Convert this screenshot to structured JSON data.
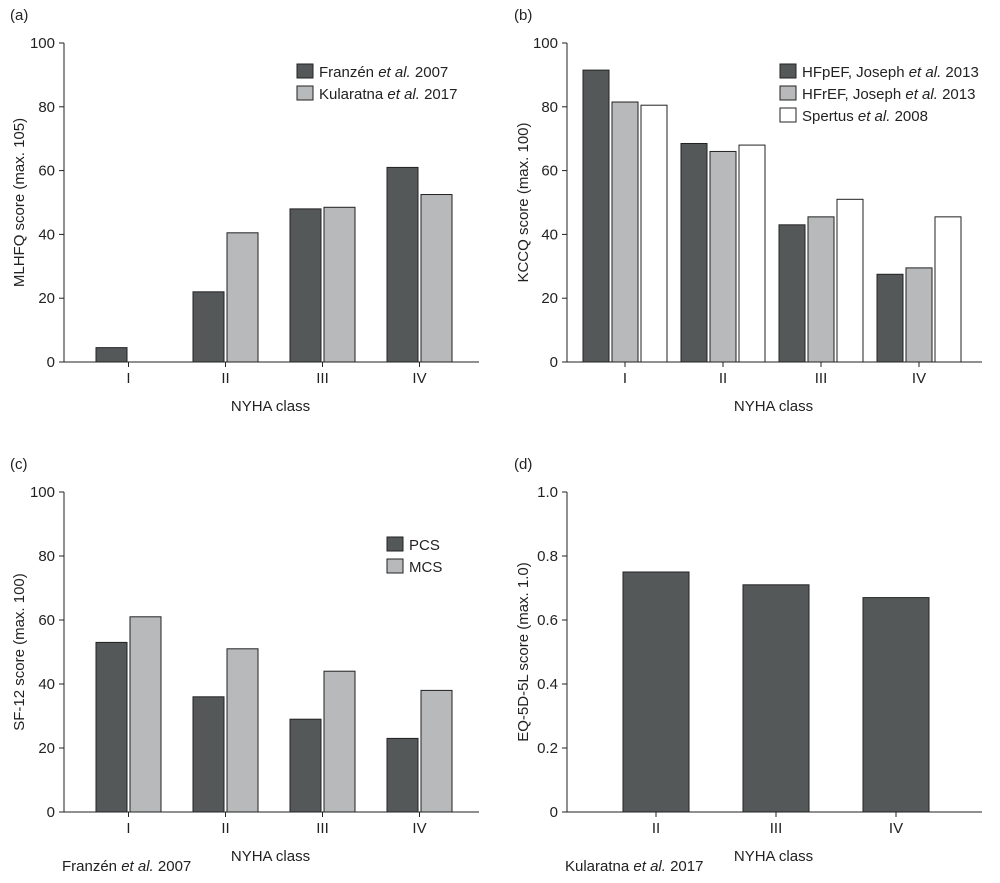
{
  "colors": {
    "dark": "#555859",
    "light": "#b8b9ba",
    "white": "#ffffff",
    "stroke": "#222222"
  },
  "chart_data": [
    {
      "panel": "(a)",
      "type": "bar",
      "categories": [
        "I",
        "II",
        "III",
        "IV"
      ],
      "xlabel": "NYHA class",
      "ylabel": "MLHFQ score (max. 105)",
      "ylim": [
        0,
        100
      ],
      "yticks": [
        "0",
        "20",
        "40",
        "60",
        "80",
        "100"
      ],
      "legend_position": "top-right",
      "footnote": "",
      "series": [
        {
          "name": "Franzén et al. 2007",
          "color": "dark",
          "values": [
            4.5,
            22,
            48,
            61
          ]
        },
        {
          "name": "Kularatna et al. 2017",
          "color": "light",
          "values": [
            null,
            40.5,
            48.5,
            52.5
          ]
        }
      ]
    },
    {
      "panel": "(b)",
      "type": "bar",
      "categories": [
        "I",
        "II",
        "III",
        "IV"
      ],
      "xlabel": "NYHA class",
      "ylabel": "KCCQ score (max. 100)",
      "ylim": [
        0,
        100
      ],
      "yticks": [
        "0",
        "20",
        "40",
        "60",
        "80",
        "100"
      ],
      "legend_position": "top-right",
      "footnote": "",
      "series": [
        {
          "name": "HFpEF, Joseph et al. 2013",
          "color": "dark",
          "values": [
            91.5,
            68.5,
            43,
            27.5
          ]
        },
        {
          "name": "HFrEF, Joseph et al. 2013",
          "color": "light",
          "values": [
            81.5,
            66,
            45.5,
            29.5
          ]
        },
        {
          "name": "Spertus et al. 2008",
          "color": "white",
          "values": [
            80.5,
            68,
            51,
            45.5
          ]
        }
      ]
    },
    {
      "panel": "(c)",
      "type": "bar",
      "categories": [
        "I",
        "II",
        "III",
        "IV"
      ],
      "xlabel": "NYHA class",
      "ylabel": "SF-12 score (max. 100)",
      "ylim": [
        0,
        100
      ],
      "yticks": [
        "0",
        "20",
        "40",
        "60",
        "80",
        "100"
      ],
      "legend_position": "top-right",
      "footnote": "Franzén et al. 2007",
      "series": [
        {
          "name": "PCS",
          "color": "dark",
          "values": [
            53,
            36,
            29,
            23
          ]
        },
        {
          "name": "MCS",
          "color": "light",
          "values": [
            61,
            51,
            44,
            38
          ]
        }
      ]
    },
    {
      "panel": "(d)",
      "type": "bar",
      "categories": [
        "II",
        "III",
        "IV"
      ],
      "xlabel": "NYHA class",
      "ylabel": "EQ-5D-5L score (max. 1.0)",
      "ylim": [
        0,
        1
      ],
      "yticks": [
        "0",
        "0.2",
        "0.4",
        "0.6",
        "0.8",
        "1.0"
      ],
      "legend_position": "none",
      "footnote": "Kularatna et al. 2017",
      "series": [
        {
          "name": "",
          "color": "dark",
          "values": [
            0.75,
            0.71,
            0.67
          ]
        }
      ]
    }
  ]
}
